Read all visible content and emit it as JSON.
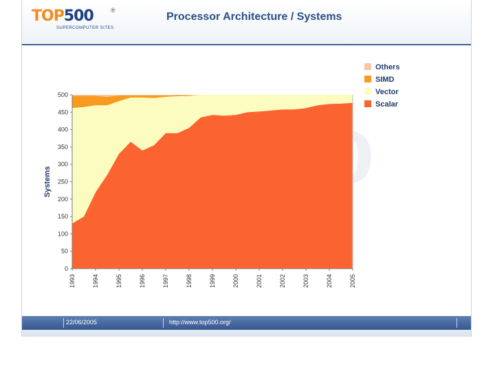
{
  "header": {
    "logo_top": "TOP",
    "logo_num": "500",
    "logo_reg": "®",
    "logo_sub": "SUPERCOMPUTER SITES",
    "title": "Processor Architecture / Systems"
  },
  "footer": {
    "date": "22/06/2005",
    "url": "http://www.top500.org/"
  },
  "chart_data": {
    "type": "area",
    "stacked": true,
    "title": "",
    "xlabel": "",
    "ylabel": "Systems",
    "ylim": [
      0,
      500
    ],
    "yticks": [
      0,
      50,
      100,
      150,
      200,
      250,
      300,
      350,
      400,
      450,
      500
    ],
    "xtick_labels": [
      "1993",
      "1994",
      "1995",
      "1996",
      "1997",
      "1998",
      "1999",
      "2000",
      "2001",
      "2002",
      "2003",
      "2004",
      "2005"
    ],
    "x": [
      1993.5,
      1994.0,
      1994.5,
      1995.0,
      1995.5,
      1996.0,
      1996.5,
      1997.0,
      1997.5,
      1998.0,
      1998.5,
      1999.0,
      1999.5,
      2000.0,
      2000.5,
      2001.0,
      2001.5,
      2002.0,
      2002.5,
      2003.0,
      2003.5,
      2004.0,
      2004.5,
      2005.0,
      2005.5
    ],
    "legend_position": "top-right",
    "colors": {
      "Others": "#f7c7a2",
      "SIMD": "#f79a1e",
      "Vector": "#fdfcc0",
      "Scalar": "#fb6431"
    },
    "series": [
      {
        "name": "Scalar",
        "values": [
          130,
          150,
          220,
          270,
          330,
          365,
          340,
          355,
          390,
          390,
          405,
          435,
          442,
          440,
          442,
          450,
          452,
          455,
          458,
          458,
          462,
          470,
          474,
          475,
          477
        ]
      },
      {
        "name": "Vector",
        "values": [
          332,
          315,
          250,
          200,
          152,
          127,
          152,
          136,
          104,
          106,
          92,
          65,
          58,
          60,
          58,
          50,
          48,
          45,
          42,
          42,
          38,
          30,
          26,
          25,
          23
        ]
      },
      {
        "name": "SIMD",
        "values": [
          35,
          32,
          27,
          24,
          16,
          6,
          6,
          7,
          4,
          3,
          2,
          0,
          0,
          0,
          0,
          0,
          0,
          0,
          0,
          0,
          0,
          0,
          0,
          0,
          0
        ]
      },
      {
        "name": "Others",
        "values": [
          3,
          3,
          3,
          6,
          2,
          2,
          2,
          2,
          2,
          1,
          1,
          0,
          0,
          0,
          0,
          0,
          0,
          0,
          0,
          0,
          0,
          0,
          0,
          0,
          0
        ]
      }
    ],
    "legend_order": [
      "Others",
      "SIMD",
      "Vector",
      "Scalar"
    ]
  }
}
